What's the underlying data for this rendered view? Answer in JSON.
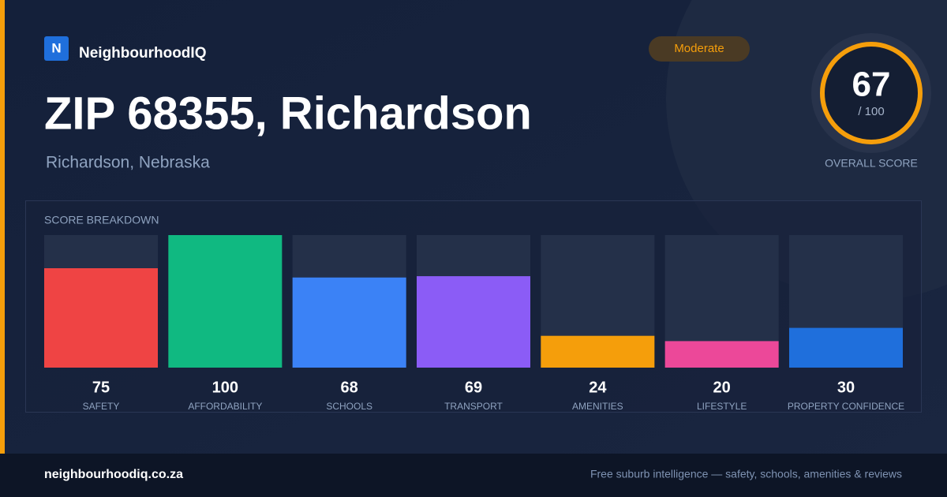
{
  "brand": {
    "logo": "N",
    "name": "NeighbourhoodIQ"
  },
  "badge": "Moderate",
  "title": "ZIP 68355, Richardson",
  "subtitle": "Richardson, Nebraska",
  "score": {
    "value": 67,
    "out_of": "/ 100",
    "label": "OVERALL SCORE"
  },
  "chart_data": {
    "type": "bar",
    "title": "SCORE BREAKDOWN",
    "categories": [
      "SAFETY",
      "AFFORDABILITY",
      "SCHOOLS",
      "TRANSPORT",
      "AMENITIES",
      "LIFESTYLE",
      "PROPERTY CONFIDENCE"
    ],
    "values": [
      75,
      100,
      68,
      69,
      24,
      20,
      30
    ],
    "colors": [
      "#ef4444",
      "#10b981",
      "#3b82f6",
      "#8b5cf6",
      "#f59e0b",
      "#ec4899",
      "#1f6fdc"
    ],
    "ylim": [
      0,
      100
    ]
  },
  "footer": {
    "site": "neighbourhoodiq.co.za",
    "tagline": "Free suburb intelligence — safety, schools, amenities & reviews"
  }
}
